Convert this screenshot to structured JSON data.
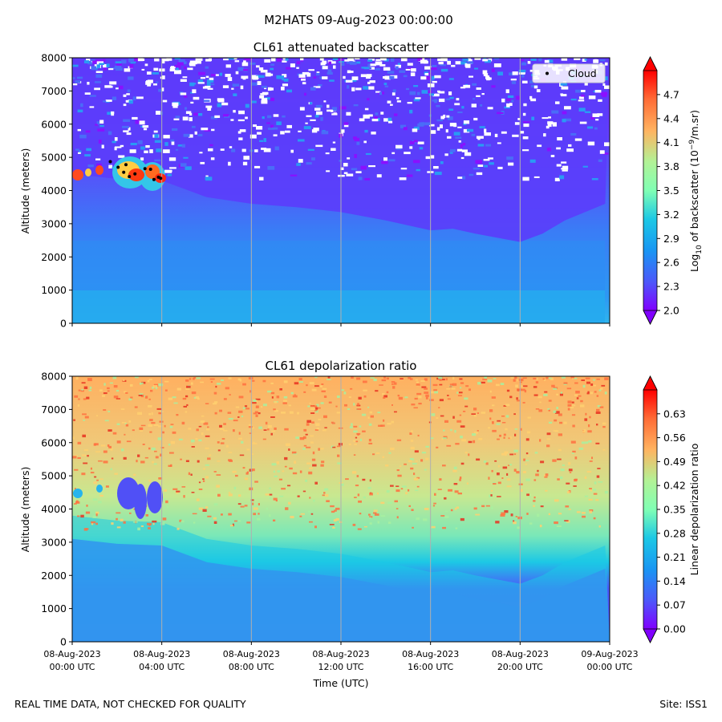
{
  "figure": {
    "suptitle": "M2HATS 09-Aug-2023 00:00:00",
    "footer_left": "REAL TIME DATA, NOT CHECKED FOR QUALITY",
    "footer_right": "Site: ISS1"
  },
  "chart_data": [
    {
      "type": "heatmap",
      "title": "CL61 attenuated backscatter",
      "ylabel": "Altitude (meters)",
      "xlabel": "",
      "ylim": [
        0,
        8000
      ],
      "yticks": [
        0,
        1000,
        2000,
        3000,
        4000,
        5000,
        6000,
        7000,
        8000
      ],
      "xlim_hours": [
        0,
        24
      ],
      "xticks_hours": [
        0,
        4,
        8,
        12,
        16,
        20,
        24
      ],
      "xtick_labels_shown": false,
      "grid": "vertical",
      "colorbar": {
        "label": "Log10 of backscatter (10^-9/m.sr)",
        "range": [
          2.0,
          5.0
        ],
        "ticks": [
          "2.0",
          "2.3",
          "2.6",
          "2.9",
          "3.2",
          "3.5",
          "3.8",
          "4.1",
          "4.4",
          "4.7"
        ],
        "colormap": "rainbow",
        "extend": "both"
      },
      "legend": {
        "entries": [
          "Cloud"
        ],
        "placement": "top-right"
      },
      "cloud_points": [
        {
          "x": 1.7,
          "y": 4870
        },
        {
          "x": 2.05,
          "y": 4700
        },
        {
          "x": 2.3,
          "y": 4550
        },
        {
          "x": 2.55,
          "y": 4420
        },
        {
          "x": 2.8,
          "y": 4500
        },
        {
          "x": 2.4,
          "y": 4780
        },
        {
          "x": 3.25,
          "y": 4660
        },
        {
          "x": 3.5,
          "y": 4640
        },
        {
          "x": 3.65,
          "y": 4330
        },
        {
          "x": 3.85,
          "y": 4400
        },
        {
          "x": 3.95,
          "y": 4370
        }
      ],
      "boundary_layer_top": {
        "x_hours": [
          0,
          2,
          4,
          5,
          6,
          8,
          10,
          12,
          14,
          16,
          17,
          18,
          20,
          21,
          22,
          23.8
        ],
        "altitude_m": [
          4000,
          3850,
          3800,
          3550,
          3300,
          3100,
          3000,
          2850,
          2600,
          2300,
          2350,
          2200,
          1950,
          2200,
          2600,
          3100
        ]
      }
    },
    {
      "type": "heatmap",
      "title": "CL61 depolarization ratio",
      "ylabel": "Altitude (meters)",
      "xlabel": "Time (UTC)",
      "ylim": [
        0,
        8000
      ],
      "yticks": [
        0,
        1000,
        2000,
        3000,
        4000,
        5000,
        6000,
        7000,
        8000
      ],
      "xlim_hours": [
        0,
        24
      ],
      "xticks_hours": [
        0,
        4,
        8,
        12,
        16,
        20,
        24
      ],
      "xtick_labels": [
        [
          "08-Aug-2023",
          "00:00 UTC"
        ],
        [
          "08-Aug-2023",
          "04:00 UTC"
        ],
        [
          "08-Aug-2023",
          "08:00 UTC"
        ],
        [
          "08-Aug-2023",
          "12:00 UTC"
        ],
        [
          "08-Aug-2023",
          "16:00 UTC"
        ],
        [
          "08-Aug-2023",
          "20:00 UTC"
        ],
        [
          "09-Aug-2023",
          "00:00 UTC"
        ]
      ],
      "grid": "vertical",
      "colorbar": {
        "label": "Linear depolarization ratio",
        "range": [
          0.0,
          0.7
        ],
        "ticks": [
          "0.00",
          "0.07",
          "0.14",
          "0.21",
          "0.28",
          "0.35",
          "0.42",
          "0.49",
          "0.56",
          "0.63"
        ],
        "colormap": "rainbow",
        "extend": "both"
      }
    }
  ]
}
